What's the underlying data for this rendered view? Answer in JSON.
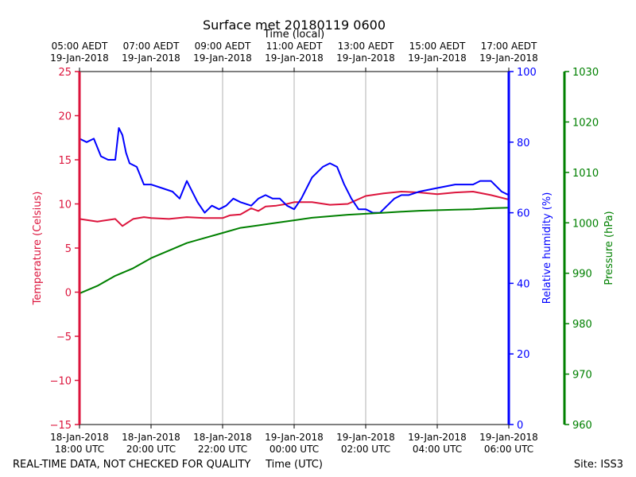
{
  "title": "Surface met 20180119 0600",
  "top_axis_label": "Time (local)",
  "bottom_axis_label": "Time (UTC)",
  "footer_left": "REAL-TIME DATA, NOT CHECKED FOR QUALITY",
  "footer_right": "Site: ISS3",
  "colors": {
    "temperature": "#dc143c",
    "humidity": "#0000ff",
    "pressure": "#008000",
    "grid": "#b0b0b0"
  },
  "chart_data": {
    "type": "line",
    "x_range_hours_utc": [
      18,
      30
    ],
    "grid": "vertical",
    "top_ticks": [
      [
        "05:00 AEDT",
        "19-Jan-2018"
      ],
      [
        "07:00 AEDT",
        "19-Jan-2018"
      ],
      [
        "09:00 AEDT",
        "19-Jan-2018"
      ],
      [
        "11:00 AEDT",
        "19-Jan-2018"
      ],
      [
        "13:00 AEDT",
        "19-Jan-2018"
      ],
      [
        "15:00 AEDT",
        "19-Jan-2018"
      ],
      [
        "17:00 AEDT",
        "19-Jan-2018"
      ]
    ],
    "bottom_ticks": [
      [
        "18-Jan-2018",
        "18:00 UTC"
      ],
      [
        "18-Jan-2018",
        "20:00 UTC"
      ],
      [
        "18-Jan-2018",
        "22:00 UTC"
      ],
      [
        "19-Jan-2018",
        "00:00 UTC"
      ],
      [
        "19-Jan-2018",
        "02:00 UTC"
      ],
      [
        "19-Jan-2018",
        "04:00 UTC"
      ],
      [
        "19-Jan-2018",
        "06:00 UTC"
      ]
    ],
    "axes": {
      "temperature": {
        "label": "Temperature (Celsius)",
        "ylim": [
          -15,
          25
        ],
        "ticks": [
          "25",
          "20",
          "15",
          "10",
          "5",
          "0",
          "−5",
          "−10",
          "−15"
        ]
      },
      "humidity": {
        "label": "Relative humidity (%)",
        "ylim": [
          0,
          100
        ],
        "ticks": [
          "100",
          "80",
          "60",
          "40",
          "20",
          "0"
        ]
      },
      "pressure": {
        "label": "Pressure (hPa)",
        "ylim": [
          960,
          1030
        ],
        "ticks": [
          "1030",
          "1020",
          "1010",
          "1000",
          "990",
          "980",
          "970",
          "960"
        ]
      }
    },
    "series": [
      {
        "axis": "temperature",
        "x": [
          18.0,
          18.5,
          19.0,
          19.2,
          19.5,
          19.8,
          20.0,
          20.5,
          21.0,
          21.5,
          22.0,
          22.2,
          22.5,
          22.8,
          23.0,
          23.2,
          23.5,
          23.8,
          24.0,
          24.5,
          25.0,
          25.5,
          26.0,
          26.5,
          27.0,
          27.5,
          28.0,
          28.5,
          29.0,
          29.5,
          30.0
        ],
        "values": [
          8.3,
          8.0,
          8.3,
          7.5,
          8.3,
          8.5,
          8.4,
          8.3,
          8.5,
          8.4,
          8.4,
          8.7,
          8.8,
          9.5,
          9.2,
          9.7,
          9.8,
          10.0,
          10.2,
          10.2,
          9.9,
          10.0,
          10.9,
          11.2,
          11.4,
          11.3,
          11.1,
          11.3,
          11.4,
          11.0,
          10.5
        ]
      },
      {
        "axis": "humidity",
        "x": [
          18.0,
          18.2,
          18.4,
          18.6,
          18.8,
          19.0,
          19.1,
          19.2,
          19.3,
          19.4,
          19.6,
          19.8,
          20.0,
          20.3,
          20.6,
          20.8,
          21.0,
          21.3,
          21.5,
          21.7,
          21.9,
          22.1,
          22.3,
          22.5,
          22.8,
          23.0,
          23.2,
          23.4,
          23.6,
          23.8,
          24.0,
          24.2,
          24.5,
          24.8,
          25.0,
          25.2,
          25.4,
          25.6,
          25.8,
          26.0,
          26.2,
          26.4,
          26.6,
          26.8,
          27.0,
          27.2,
          27.5,
          28.0,
          28.5,
          29.0,
          29.2,
          29.5,
          29.8,
          30.0
        ],
        "values": [
          81,
          80,
          81,
          76,
          75,
          75,
          84,
          82,
          77,
          74,
          73,
          68,
          68,
          67,
          66,
          64,
          69,
          63,
          60,
          62,
          61,
          62,
          64,
          63,
          62,
          64,
          65,
          64,
          64,
          62,
          61,
          64,
          70,
          73,
          74,
          73,
          68,
          64,
          61,
          61,
          60,
          60,
          62,
          64,
          65,
          65,
          66,
          67,
          68,
          68,
          69,
          69,
          66,
          65
        ]
      },
      {
        "axis": "pressure",
        "x": [
          18.0,
          18.5,
          19.0,
          19.5,
          20.0,
          20.5,
          21.0,
          21.5,
          22.0,
          22.5,
          23.0,
          23.5,
          24.0,
          24.5,
          25.0,
          25.5,
          26.0,
          26.5,
          27.0,
          27.5,
          28.0,
          28.5,
          29.0,
          29.5,
          30.0
        ],
        "values": [
          986.0,
          987.5,
          989.5,
          991.0,
          993.0,
          994.5,
          996.0,
          997.0,
          998.0,
          999.0,
          999.5,
          1000.0,
          1000.5,
          1001.0,
          1001.3,
          1001.6,
          1001.8,
          1002.0,
          1002.2,
          1002.4,
          1002.5,
          1002.6,
          1002.7,
          1002.9,
          1003.0
        ]
      }
    ]
  }
}
